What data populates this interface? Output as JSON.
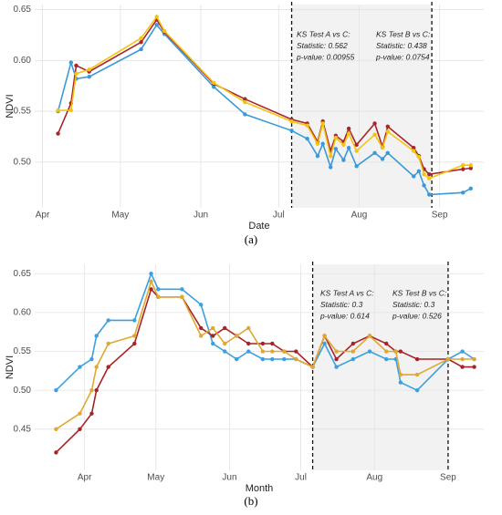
{
  "chart_data": [
    {
      "type": "line",
      "panel_label": "(a)",
      "xlabel": "Date",
      "ylabel": "NDVI",
      "xlim": [
        88,
        261
      ],
      "ylim": [
        0.455,
        0.655
      ],
      "xticks": [
        {
          "value": 91,
          "label": "Apr"
        },
        {
          "value": 121,
          "label": "May"
        },
        {
          "value": 152,
          "label": "Jun"
        },
        {
          "value": 182,
          "label": "Jul"
        },
        {
          "value": 213,
          "label": "Aug"
        },
        {
          "value": 244,
          "label": "Sep"
        }
      ],
      "yticks": [
        {
          "value": 0.5,
          "label": "0.50"
        },
        0.55,
        {
          "value": 0.6,
          "label": "0.60"
        },
        0.65
      ],
      "grid": true,
      "vlines": [
        187,
        241
      ],
      "annotations": [
        {
          "lines": [
            "KS Test A vs C:",
            "Statistic: 0.562",
            "p-value: 0.00955"
          ]
        },
        {
          "lines": [
            "KS Test B vs C:",
            "Statistic: 0.438",
            "p-value: 0.0754"
          ]
        }
      ],
      "x": [
        97,
        102,
        104,
        109,
        129,
        135,
        138,
        157,
        169,
        187,
        193,
        197,
        199,
        202,
        204,
        207,
        209,
        212,
        219,
        222,
        224,
        234,
        236,
        238,
        240,
        253,
        256
      ],
      "series": [
        {
          "color": "#3a9ad9",
          "values": [
            0.55,
            0.598,
            0.582,
            0.584,
            0.611,
            0.635,
            0.626,
            0.574,
            0.547,
            0.531,
            0.523,
            0.506,
            0.518,
            0.495,
            0.513,
            0.502,
            0.514,
            0.496,
            0.509,
            0.503,
            0.509,
            0.486,
            0.491,
            0.477,
            0.468,
            0.47,
            0.474
          ]
        },
        {
          "color": "#a8262b",
          "values": [
            0.528,
            0.558,
            0.595,
            0.589,
            0.618,
            0.64,
            0.628,
            0.577,
            0.562,
            0.542,
            0.538,
            0.52,
            0.54,
            0.511,
            0.526,
            0.52,
            0.533,
            0.517,
            0.538,
            0.515,
            0.535,
            0.514,
            0.506,
            0.493,
            0.488,
            0.493,
            0.494
          ]
        },
        {
          "color": "#f2c40f",
          "values": [
            0.551,
            0.551,
            0.587,
            0.591,
            0.622,
            0.643,
            0.629,
            0.578,
            0.559,
            0.54,
            0.536,
            0.518,
            0.538,
            0.506,
            0.524,
            0.517,
            0.528,
            0.511,
            0.527,
            0.514,
            0.53,
            0.511,
            0.505,
            0.488,
            0.484,
            0.497,
            0.497
          ]
        }
      ]
    },
    {
      "type": "line",
      "panel_label": "(b)",
      "xlabel": "Month",
      "ylabel": "NDVI",
      "xlim": [
        70,
        259
      ],
      "ylim": [
        0.397,
        0.662
      ],
      "xticks": [
        {
          "value": 91,
          "label": "Apr"
        },
        {
          "value": 121,
          "label": "May"
        },
        {
          "value": 152,
          "label": "Jun"
        },
        {
          "value": 182,
          "label": "Jul"
        },
        {
          "value": 213,
          "label": "Aug"
        },
        {
          "value": 244,
          "label": "Sep"
        }
      ],
      "yticks": [
        0.45,
        {
          "value": 0.5,
          "label": "0.50"
        },
        0.55,
        {
          "value": 0.6,
          "label": "0.60"
        },
        0.65
      ],
      "grid": true,
      "vlines": [
        187,
        244
      ],
      "annotations": [
        {
          "lines": [
            "KS Test A vs C:",
            "Statistic: 0.3",
            "p-value: 0.614"
          ]
        },
        {
          "lines": [
            "KS Test B vs C:",
            "Statistic: 0.3",
            "p-value: 0.526"
          ]
        }
      ],
      "x": [
        79,
        89,
        94,
        96,
        101,
        112,
        119,
        122,
        132,
        140,
        145,
        150,
        155,
        160,
        166,
        170,
        175,
        180,
        187,
        192,
        197,
        204,
        211,
        218,
        222,
        224,
        231,
        244,
        250,
        255
      ],
      "series": [
        {
          "color": "#3aa0e0",
          "values": [
            0.5,
            0.53,
            0.54,
            0.57,
            0.59,
            0.59,
            0.65,
            0.63,
            0.63,
            0.61,
            0.56,
            0.55,
            0.54,
            0.55,
            0.54,
            0.54,
            0.54,
            0.54,
            0.53,
            0.56,
            0.53,
            0.54,
            0.55,
            0.54,
            0.54,
            0.51,
            0.5,
            0.54,
            0.55,
            0.54
          ]
        },
        {
          "color": "#a82328",
          "values": [
            0.42,
            0.45,
            0.47,
            0.5,
            0.53,
            0.56,
            0.63,
            0.62,
            0.62,
            0.58,
            0.57,
            0.58,
            0.57,
            0.56,
            0.56,
            0.56,
            0.55,
            0.55,
            0.53,
            0.57,
            0.54,
            0.56,
            0.57,
            0.56,
            0.55,
            0.55,
            0.54,
            0.54,
            0.53,
            0.53
          ]
        },
        {
          "color": "#e0a830",
          "values": [
            0.45,
            0.47,
            0.5,
            0.53,
            0.56,
            0.57,
            0.64,
            0.62,
            0.62,
            0.57,
            0.58,
            0.56,
            0.57,
            0.58,
            0.55,
            0.55,
            0.55,
            0.54,
            0.53,
            0.57,
            0.55,
            0.55,
            0.57,
            0.55,
            0.55,
            0.52,
            0.52,
            0.54,
            0.54,
            0.54
          ]
        }
      ]
    }
  ]
}
